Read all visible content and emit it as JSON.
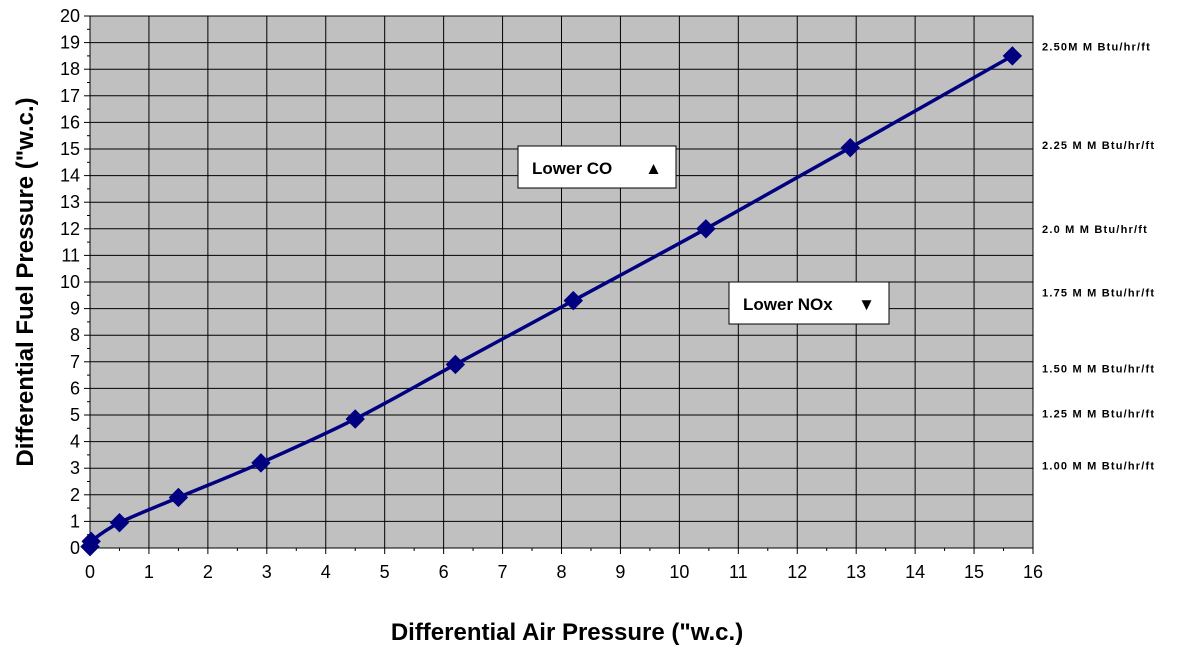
{
  "chart_data": {
    "type": "line",
    "title": "",
    "xlabel": "Differential Air Pressure (\"w.c.)",
    "ylabel": "Differential Fuel Pressure (\"w.c.)",
    "xlim": [
      0,
      16
    ],
    "ylim": [
      0,
      20
    ],
    "xticks": [
      0,
      1,
      2,
      3,
      4,
      5,
      6,
      7,
      8,
      9,
      10,
      11,
      12,
      13,
      14,
      15,
      16
    ],
    "yticks": [
      0,
      1,
      2,
      3,
      4,
      5,
      6,
      7,
      8,
      9,
      10,
      11,
      12,
      13,
      14,
      15,
      16,
      17,
      18,
      19,
      20
    ],
    "grid": true,
    "series": [
      {
        "color": "#000080",
        "marker": "diamond",
        "x": [
          0,
          0.02,
          0.5,
          1.5,
          2.9,
          4.5,
          6.2,
          8.2,
          10.45,
          12.9,
          15.65
        ],
        "y": [
          0.05,
          0.25,
          0.95,
          1.9,
          3.2,
          4.85,
          6.9,
          9.3,
          12.0,
          15.05,
          18.5
        ]
      }
    ],
    "right_labels": [
      {
        "text": "2.50M M  Btu/hr/ft",
        "y": 18.85
      },
      {
        "text": "2.25 M M Btu/hr/ft",
        "y": 15.15
      },
      {
        "text": "2.0  M M Btu/hr/ft",
        "y": 12.0
      },
      {
        "text": "1.75  M M Btu/hr/ft",
        "y": 9.6
      },
      {
        "text": "1.50  M M Btu/hr/ft",
        "y": 6.75
      },
      {
        "text": "1.25  M M Btu/hr/ft",
        "y": 5.05
      },
      {
        "text": "1.00  M M Btu/hr/ft",
        "y": 3.1
      }
    ],
    "annotations": [
      {
        "text": "Lower  CO",
        "symbol": "▲"
      },
      {
        "text": "Lower  NOx",
        "symbol": "▼"
      }
    ],
    "colors": {
      "plot_background": "#c0c0c0",
      "grid": "#000000",
      "line": "#000080"
    }
  }
}
